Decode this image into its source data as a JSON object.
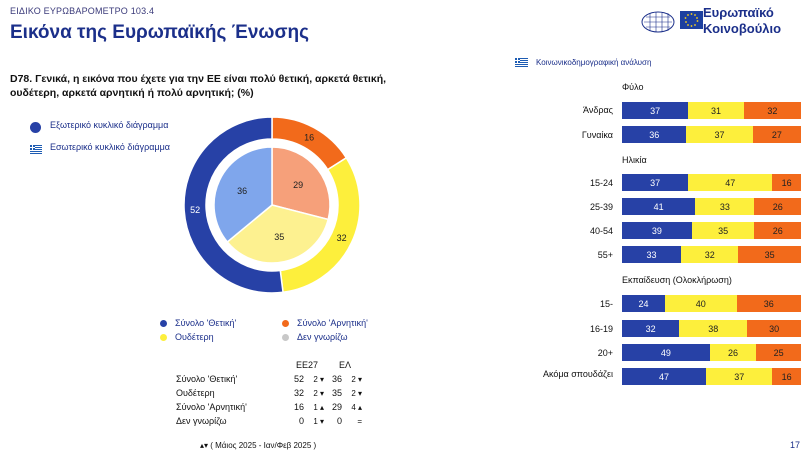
{
  "header": {
    "label": "ΕΙΔΙΚΟ ΕΥΡΩΒΑΡΟΜΕΤΡΟ 103.4",
    "title": "Εικόνα της Ευρωπαϊκής Ένωσης",
    "logo_line1": "Ευρωπαϊκό",
    "logo_line2": "Κοινοβούλιο"
  },
  "question": "D78. Γενικά, η εικόνα που έχετε για την ΕΕ είναι πολύ θετική, αρκετά θετική, ουδέτερη, αρκετά αρνητική ή πολύ αρνητική; (%)",
  "donut_legend": {
    "outer": "Εξωτερικό κυκλικό διάγραμμα",
    "inner": "Εσωτερικό κυκλικό διάγραμμα"
  },
  "colors": {
    "positive": "#2741a6",
    "neutral": "#fdef3c",
    "negative": "#f26a1b",
    "dont_know": "#c8c8c8",
    "inner_positive": "#7fa6ec",
    "inner_neutral": "#fdf190",
    "inner_negative": "#f6a07a",
    "title_blue": "#1b2f8a"
  },
  "series_legend": {
    "positive": "Σύνολο 'Θετική'",
    "negative": "Σύνολο 'Αρνητική'",
    "neutral": "Ουδέτερη",
    "dont_know": "Δεν γνωρίζω"
  },
  "summary_table": {
    "col_eu": "ΕΕ27",
    "col_gr": "ΕΛ",
    "rows": [
      {
        "label": "Σύνολο 'Θετική'",
        "eu": "52",
        "eu_change": "2 ▾",
        "gr": "36",
        "gr_change": "2 ▾"
      },
      {
        "label": "Ουδέτερη",
        "eu": "32",
        "eu_change": "2 ▾",
        "gr": "35",
        "gr_change": "2 ▾"
      },
      {
        "label": "Σύνολο 'Αρνητική'",
        "eu": "16",
        "eu_change": "1 ▴",
        "gr": "29",
        "gr_change": "4 ▴"
      },
      {
        "label": "Δεν γνωρίζω",
        "eu": "0",
        "eu_change": "1 ▾",
        "gr": "0",
        "gr_change": "="
      }
    ],
    "footnote": "▴▾ ( Μάιος 2025 - Ιαν/Φεβ 2025 )"
  },
  "sociodemo": {
    "label": "Κοινωνικοδημογραφική ανάλυση",
    "sections": [
      {
        "title": "Φύλο",
        "rows": [
          {
            "label": "Άνδρας",
            "values": [
              37,
              31,
              32
            ]
          },
          {
            "label": "Γυναίκα",
            "values": [
              36,
              37,
              27
            ]
          }
        ]
      },
      {
        "title": "Ηλικία",
        "rows": [
          {
            "label": "15-24",
            "values": [
              37,
              47,
              16
            ]
          },
          {
            "label": "25-39",
            "values": [
              41,
              33,
              26
            ]
          },
          {
            "label": "40-54",
            "values": [
              39,
              35,
              26
            ]
          },
          {
            "label": "55+",
            "values": [
              33,
              32,
              35
            ]
          }
        ]
      },
      {
        "title": "Εκπαίδευση (Ολοκλήρωση)",
        "rows": [
          {
            "label": "15-",
            "values": [
              24,
              40,
              36
            ]
          },
          {
            "label": "16-19",
            "values": [
              32,
              38,
              30
            ]
          },
          {
            "label": "20+",
            "values": [
              49,
              26,
              25
            ]
          },
          {
            "label": "Ακόμα σπουδάζει",
            "values": [
              47,
              37,
              16
            ]
          }
        ]
      }
    ]
  },
  "page_number": "17",
  "chart_data": [
    {
      "type": "pie",
      "categories": [
        "Σύνολο 'Θετική'",
        "Ουδέτερη",
        "Σύνολο 'Αρνητική'",
        "Δεν γνωρίζω"
      ],
      "series": [
        {
          "name": "Εξωτερικό κυκλικό διάγραμμα",
          "values": [
            52,
            32,
            16,
            0
          ]
        },
        {
          "name": "Εσωτερικό κυκλικό διάγραμμα",
          "values": [
            36,
            35,
            29,
            0
          ]
        }
      ]
    },
    {
      "type": "bar",
      "stacked": true,
      "orientation": "horizontal",
      "categories": [
        "Άνδρας",
        "Γυναίκα",
        "15-24",
        "25-39",
        "40-54",
        "55+",
        "15-",
        "16-19",
        "20+",
        "Ακόμα σπουδάζει"
      ],
      "series": [
        {
          "name": "Σύνολο 'Θετική'",
          "values": [
            37,
            36,
            37,
            41,
            39,
            33,
            24,
            32,
            49,
            47
          ]
        },
        {
          "name": "Ουδέτερη",
          "values": [
            31,
            37,
            47,
            33,
            35,
            32,
            40,
            38,
            26,
            37
          ]
        },
        {
          "name": "Σύνολο 'Αρνητική'",
          "values": [
            32,
            27,
            16,
            26,
            26,
            35,
            36,
            30,
            25,
            16
          ]
        }
      ]
    }
  ]
}
